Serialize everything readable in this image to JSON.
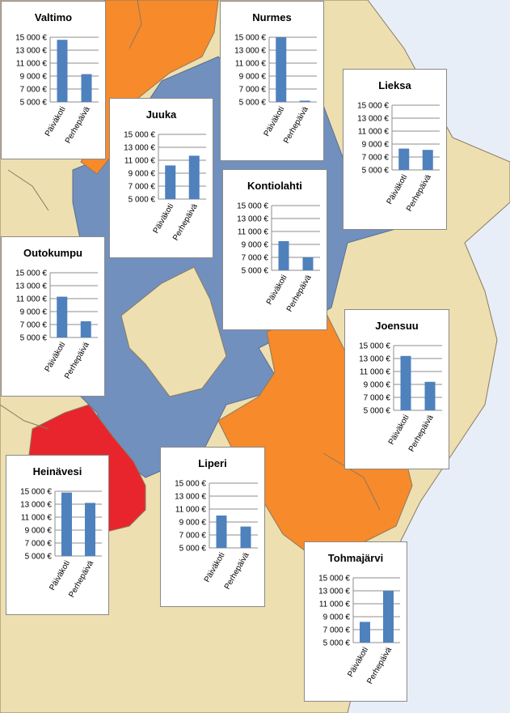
{
  "page": {
    "title": ""
  },
  "colors": {
    "sea": "#e8eef8",
    "land": "#eedfb0",
    "region_blue": "#7190be",
    "region_orange": "#f78a2b",
    "region_red": "#e8252d",
    "border": "#8a7a60",
    "bar": "#4f81bd",
    "grid": "#8c8c8c"
  },
  "chart_data": [
    {
      "type": "bar",
      "title": "Valtimo",
      "categories": [
        "Päiväkoti",
        "Perhepäivä"
      ],
      "values": [
        14600,
        9300
      ],
      "ylim": [
        5000,
        15000
      ],
      "ticks": [
        "5 000 €",
        "7 000 €",
        "9 000 €",
        "11 000 €",
        "13 000 €",
        "15 000 €"
      ]
    },
    {
      "type": "bar",
      "title": "Nurmes",
      "categories": [
        "Päiväkoti",
        "Perhepäivä"
      ],
      "values": [
        15000,
        5200
      ],
      "ylim": [
        5000,
        15000
      ],
      "ticks": [
        "5 000 €",
        "7 000 €",
        "9 000 €",
        "11 000 €",
        "13 000 €",
        "15 000 €"
      ]
    },
    {
      "type": "bar",
      "title": "Lieksa",
      "categories": [
        "Päiväkoti",
        "Perhepäivä"
      ],
      "values": [
        8300,
        8100
      ],
      "ylim": [
        5000,
        15000
      ],
      "ticks": [
        "5 000 €",
        "7 000 €",
        "9 000 €",
        "11 000 €",
        "13 000 €",
        "15 000 €"
      ]
    },
    {
      "type": "bar",
      "title": "Juuka",
      "categories": [
        "Päiväkoti",
        "Perhepäivä"
      ],
      "values": [
        10200,
        11700
      ],
      "ylim": [
        5000,
        15000
      ],
      "ticks": [
        "5 000 €",
        "7 000 €",
        "9 000 €",
        "11 000 €",
        "13 000 €",
        "15 000 €"
      ]
    },
    {
      "type": "bar",
      "title": "Kontiolahti",
      "categories": [
        "Päiväkoti",
        "Perhepäivä"
      ],
      "values": [
        9500,
        7000
      ],
      "ylim": [
        5000,
        15000
      ],
      "ticks": [
        "5 000 €",
        "7 000 €",
        "9 000 €",
        "11 000 €",
        "13 000 €",
        "15 000 €"
      ]
    },
    {
      "type": "bar",
      "title": "Outokumpu",
      "categories": [
        "Päiväkoti",
        "Perhepäivä"
      ],
      "values": [
        11300,
        7500
      ],
      "ylim": [
        5000,
        15000
      ],
      "ticks": [
        "5 000 €",
        "7 000 €",
        "9 000 €",
        "11 000 €",
        "13 000 €",
        "15 000 €"
      ]
    },
    {
      "type": "bar",
      "title": "Joensuu",
      "categories": [
        "Päiväkoti",
        "Perhepäivä"
      ],
      "values": [
        13400,
        9400
      ],
      "ylim": [
        5000,
        15000
      ],
      "ticks": [
        "5 000 €",
        "7 000 €",
        "9 000 €",
        "11 000 €",
        "13 000 €",
        "15 000 €"
      ]
    },
    {
      "type": "bar",
      "title": "Heinävesi",
      "categories": [
        "Päiväkoti",
        "Perhepäivä"
      ],
      "values": [
        14800,
        13200
      ],
      "ylim": [
        5000,
        15000
      ],
      "ticks": [
        "5 000 €",
        "7 000 €",
        "9 000 €",
        "11 000 €",
        "13 000 €",
        "15 000 €"
      ]
    },
    {
      "type": "bar",
      "title": "Liperi",
      "categories": [
        "Päiväkoti",
        "Perhepäivä"
      ],
      "values": [
        10000,
        8300
      ],
      "ylim": [
        5000,
        15000
      ],
      "ticks": [
        "5 000 €",
        "7 000 €",
        "9 000 €",
        "11 000 €",
        "13 000 €",
        "15 000 €"
      ]
    },
    {
      "type": "bar",
      "title": "Tohmajärvi",
      "categories": [
        "Päiväkoti",
        "Perhepäivä"
      ],
      "values": [
        8200,
        13000
      ],
      "ylim": [
        5000,
        15000
      ],
      "ticks": [
        "5 000 €",
        "7 000 €",
        "9 000 €",
        "11 000 €",
        "13 000 €",
        "15 000 €"
      ]
    }
  ]
}
